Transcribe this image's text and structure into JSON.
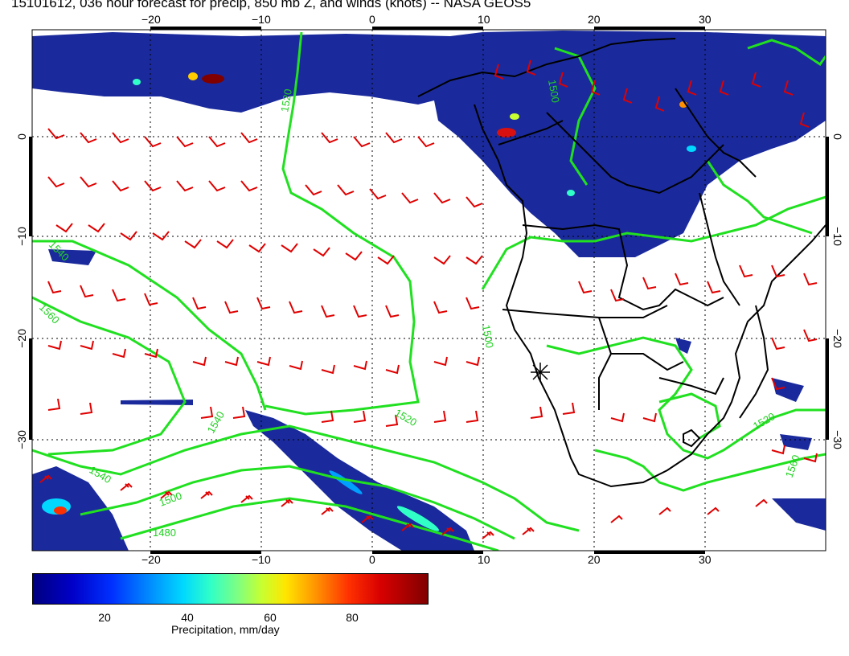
{
  "title": "15101612, 036 hour forecast for precip, 850 mb Z, and winds (knots) -- NASA GEOS5",
  "map": {
    "lon_range": [
      -30,
      40
    ],
    "lat_range": [
      -40,
      10
    ],
    "top_lon_ticks": [
      "−20",
      "−10",
      "0",
      "10",
      "20",
      "30"
    ],
    "bottom_lon_ticks": [
      "−20",
      "−10",
      "0",
      "10",
      "20",
      "30"
    ],
    "left_lat_ticks": [
      "0",
      "−10",
      "−20",
      "−30"
    ],
    "right_lat_ticks": [
      "0",
      "−10",
      "−20",
      "−30"
    ],
    "contour_labels": [
      "1520",
      "1500",
      "1540",
      "1560",
      "1540",
      "1500",
      "1480",
      "1520",
      "1500",
      "1540",
      "1560",
      "1520"
    ],
    "colors": {
      "precip_dark": "#00007f",
      "precip_fill": "#1020a0",
      "contour": "#20e020",
      "wind_barb": "#e00000",
      "coastline": "#000000"
    },
    "marker": "asterisk-location"
  },
  "colorbar": {
    "ticks": [
      "20",
      "40",
      "60",
      "80"
    ],
    "tick_values": [
      20,
      40,
      60,
      80
    ],
    "range": [
      0,
      98
    ],
    "label": "Precipitation, mm/day"
  }
}
